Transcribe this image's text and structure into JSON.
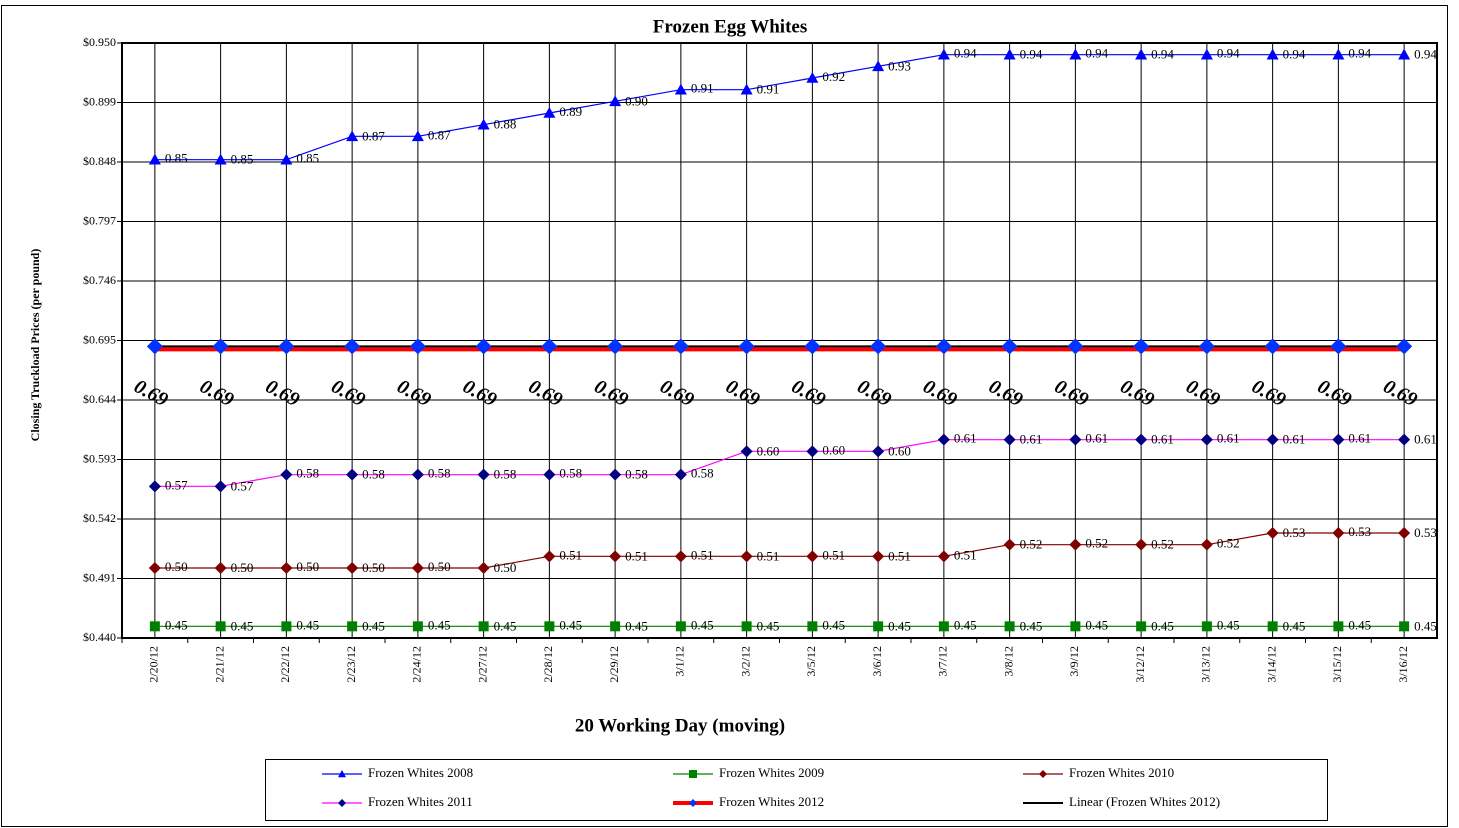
{
  "chart_data": {
    "type": "line",
    "title": "Frozen  Egg Whites",
    "x_label": "20 Working Day (moving)",
    "y_label": "Closing Truckload Prices (per pound)",
    "categories": [
      "2/20/12",
      "2/21/12",
      "2/22/12",
      "2/23/12",
      "2/24/12",
      "2/27/12",
      "2/28/12",
      "2/29/12",
      "3/1/12",
      "3/2/12",
      "3/5/12",
      "3/6/12",
      "3/7/12",
      "3/8/12",
      "3/9/12",
      "3/12/12",
      "3/13/12",
      "3/14/12",
      "3/15/12",
      "3/16/12"
    ],
    "ylim": [
      0.44,
      0.95
    ],
    "yticks": [
      {
        "value": 0.44,
        "label": "$0.440"
      },
      {
        "value": 0.491,
        "label": "$0.491"
      },
      {
        "value": 0.542,
        "label": "$0.542"
      },
      {
        "value": 0.593,
        "label": "$0.593"
      },
      {
        "value": 0.644,
        "label": "$0.644"
      },
      {
        "value": 0.695,
        "label": "$0.695"
      },
      {
        "value": 0.746,
        "label": "$0.746"
      },
      {
        "value": 0.797,
        "label": "$0.797"
      },
      {
        "value": 0.848,
        "label": "$0.848"
      },
      {
        "value": 0.899,
        "label": "$0.899"
      },
      {
        "value": 0.95,
        "label": "$0.950"
      }
    ],
    "grid": true,
    "series": [
      {
        "name": "Frozen Whites 2008",
        "color": "#0000ff",
        "marker": "triangle",
        "marker_color": "#0000ff",
        "values": [
          0.85,
          0.85,
          0.85,
          0.87,
          0.87,
          0.88,
          0.89,
          0.9,
          0.91,
          0.91,
          0.92,
          0.93,
          0.94,
          0.94,
          0.94,
          0.94,
          0.94,
          0.94,
          0.94,
          0.94
        ],
        "value_labels": [
          "0.85",
          "0.85",
          "0.85",
          "0.87",
          "0.87",
          "0.88",
          "0.89",
          "0.90",
          "0.91",
          "0.91",
          "0.92",
          "0.93",
          "0.94",
          "0.94",
          "0.94",
          "0.94",
          "0.94",
          "0.94",
          "0.94",
          "0.94"
        ]
      },
      {
        "name": "Frozen Whites 2009",
        "color": "#008000",
        "marker": "square",
        "marker_color": "#008000",
        "values": [
          0.45,
          0.45,
          0.45,
          0.45,
          0.45,
          0.45,
          0.45,
          0.45,
          0.45,
          0.45,
          0.45,
          0.45,
          0.45,
          0.45,
          0.45,
          0.45,
          0.45,
          0.45,
          0.45,
          0.45
        ]
      },
      {
        "name": "Frozen Whites 2010",
        "color": "#800000",
        "marker": "diamond",
        "marker_color": "#800000",
        "values": [
          0.5,
          0.5,
          0.5,
          0.5,
          0.5,
          0.5,
          0.51,
          0.51,
          0.51,
          0.51,
          0.51,
          0.51,
          0.51,
          0.52,
          0.52,
          0.52,
          0.52,
          0.53,
          0.53,
          0.53
        ],
        "value_labels": [
          "0.50",
          "0.50",
          "0.50",
          "0.50",
          "0.50",
          "0.50",
          "0.51",
          "0.51",
          "0.51",
          "0.51",
          "0.51",
          "0.51",
          "0.51",
          "0.52",
          "0.52",
          "0.52",
          "0.52",
          "0.53",
          "0.53",
          "0.53"
        ]
      },
      {
        "name": "Frozen Whites 2011",
        "color": "#ff00ff",
        "marker": "diamond",
        "marker_color": "#000080",
        "values": [
          0.57,
          0.57,
          0.58,
          0.58,
          0.58,
          0.58,
          0.58,
          0.58,
          0.58,
          0.6,
          0.6,
          0.6,
          0.61,
          0.61,
          0.61,
          0.61,
          0.61,
          0.61,
          0.61,
          0.61
        ],
        "value_labels": [
          "0.57",
          "0.57",
          "0.58",
          "0.58",
          "0.58",
          "0.58",
          "0.58",
          "0.58",
          "0.58",
          "0.60",
          "0.60",
          "0.60",
          "0.61",
          "0.61",
          "0.61",
          "0.61",
          "0.61",
          "0.61",
          "0.61",
          "0.61"
        ]
      },
      {
        "name": "Frozen Whites 2012",
        "color": "#ff0000",
        "marker": "diamond",
        "marker_color": "#0033ff",
        "values": [
          0.69,
          0.69,
          0.69,
          0.69,
          0.69,
          0.69,
          0.69,
          0.69,
          0.69,
          0.69,
          0.69,
          0.69,
          0.69,
          0.69,
          0.69,
          0.69,
          0.69,
          0.69,
          0.69,
          0.69
        ]
      },
      {
        "name": "Linear (Frozen Whites 2012)",
        "color": "#000000",
        "marker": "none",
        "values": [
          0.69,
          0.69,
          0.69,
          0.69,
          0.69,
          0.69,
          0.69,
          0.69,
          0.69,
          0.69,
          0.69,
          0.69,
          0.69,
          0.69,
          0.69,
          0.69,
          0.69,
          0.69,
          0.69,
          0.69
        ]
      }
    ]
  }
}
